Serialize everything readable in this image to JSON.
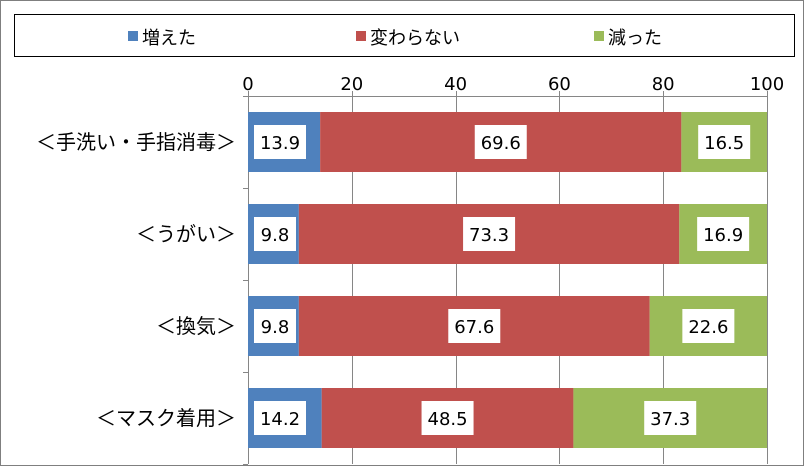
{
  "chart_data": {
    "type": "bar",
    "orientation": "horizontal",
    "stacked": true,
    "categories": [
      "＜手洗い・手指消毒＞",
      "＜うがい＞",
      "＜換気＞",
      "＜マスク着用＞"
    ],
    "series": [
      {
        "name": "増えた",
        "values": [
          13.9,
          9.8,
          9.8,
          14.2
        ],
        "color": "#4f81bd"
      },
      {
        "name": "変わらない",
        "values": [
          69.6,
          73.3,
          67.6,
          48.5
        ],
        "color": "#c0504d"
      },
      {
        "name": "減った",
        "values": [
          16.5,
          16.9,
          22.6,
          37.3
        ],
        "color": "#9bbb59"
      }
    ],
    "xlim": [
      0,
      100
    ],
    "xticks": [
      0,
      20,
      40,
      60,
      80,
      100
    ],
    "grid": true,
    "legend_position": "top",
    "data_labels": true
  }
}
